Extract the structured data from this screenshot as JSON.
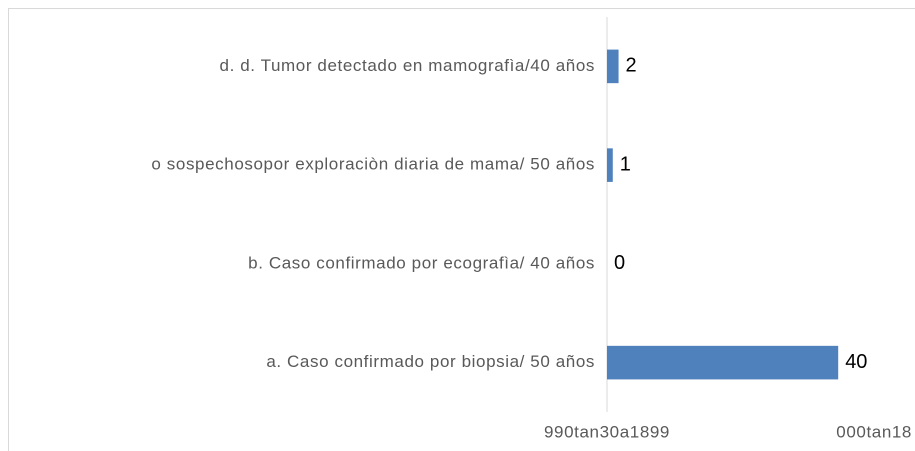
{
  "chart_data": {
    "type": "bar",
    "orientation": "horizontal",
    "categories": [
      "a. Caso confirmado por biopsia/ 50 años",
      "b. Caso confirmado por ecografìa/ 40 años",
      "o sospechosopor exploraciòn diaria de mama/ 50 años",
      "d. d. Tumor detectado en mamografìa/40 años"
    ],
    "values": [
      40,
      0,
      1,
      2
    ],
    "color": "#4f81bd",
    "xlim": [
      0,
      50
    ],
    "xticks": [
      {
        "value": 0,
        "label": "990tan30a1899"
      },
      {
        "value": 50,
        "label": "000tan18"
      }
    ],
    "grid": false
  }
}
